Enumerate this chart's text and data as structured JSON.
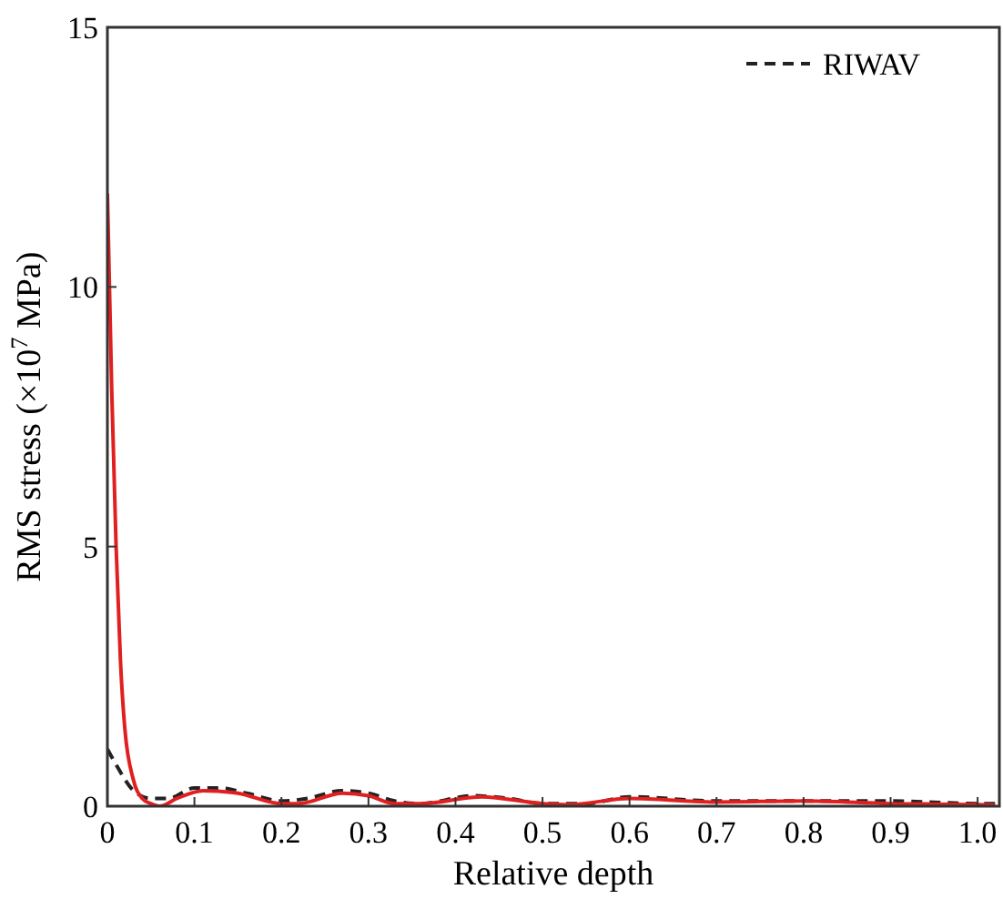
{
  "chart_data": {
    "type": "line",
    "xlabel": "Relative depth",
    "ylabel": "RMS stress (×10$^{7}$ MPa)",
    "xlim": [
      0,
      1.025
    ],
    "ylim": [
      0,
      15
    ],
    "xticks": [
      0,
      0.1,
      0.2,
      0.3,
      0.4,
      0.5,
      0.6,
      0.7,
      0.8,
      0.9,
      {
        "value": 1,
        "label": "1.0"
      }
    ],
    "yticks": [
      0,
      5,
      10,
      15
    ],
    "grid": false,
    "legend": "top right",
    "series": [
      {
        "name": "RIWAV",
        "color": "#222222",
        "line_style": "dashed",
        "x": [
          0,
          0.01,
          0.03,
          0.05,
          0.07,
          0.1,
          0.13,
          0.16,
          0.2,
          0.23,
          0.27,
          0.3,
          0.33,
          0.36,
          0.42,
          0.46,
          0.5,
          0.55,
          0.6,
          0.7,
          0.8,
          0.9,
          1.0,
          1.02
        ],
        "values": [
          1.1,
          0.8,
          0.3,
          0.15,
          0.15,
          0.35,
          0.35,
          0.25,
          0.1,
          0.15,
          0.3,
          0.25,
          0.1,
          0.05,
          0.2,
          0.15,
          0.05,
          0.05,
          0.18,
          0.1,
          0.1,
          0.1,
          0.05,
          0.05
        ]
      },
      {
        "color": "#e02020",
        "line_style": "solid",
        "x": [
          0,
          0.005,
          0.01,
          0.015,
          0.02,
          0.03,
          0.04,
          0.05,
          0.06,
          0.08,
          0.11,
          0.15,
          0.2,
          0.22,
          0.27,
          0.3,
          0.33,
          0.36,
          0.43,
          0.5,
          0.53,
          0.6,
          0.7,
          0.8,
          0.9,
          1.0,
          1.02
        ],
        "values": [
          11.8,
          8,
          5,
          2.8,
          1.5,
          0.5,
          0.15,
          0.05,
          0,
          0.15,
          0.3,
          0.25,
          0.05,
          0.05,
          0.25,
          0.2,
          0.05,
          0.05,
          0.18,
          0.05,
          0.03,
          0.15,
          0.08,
          0.1,
          0.05,
          0.03,
          0.02
        ]
      }
    ]
  }
}
